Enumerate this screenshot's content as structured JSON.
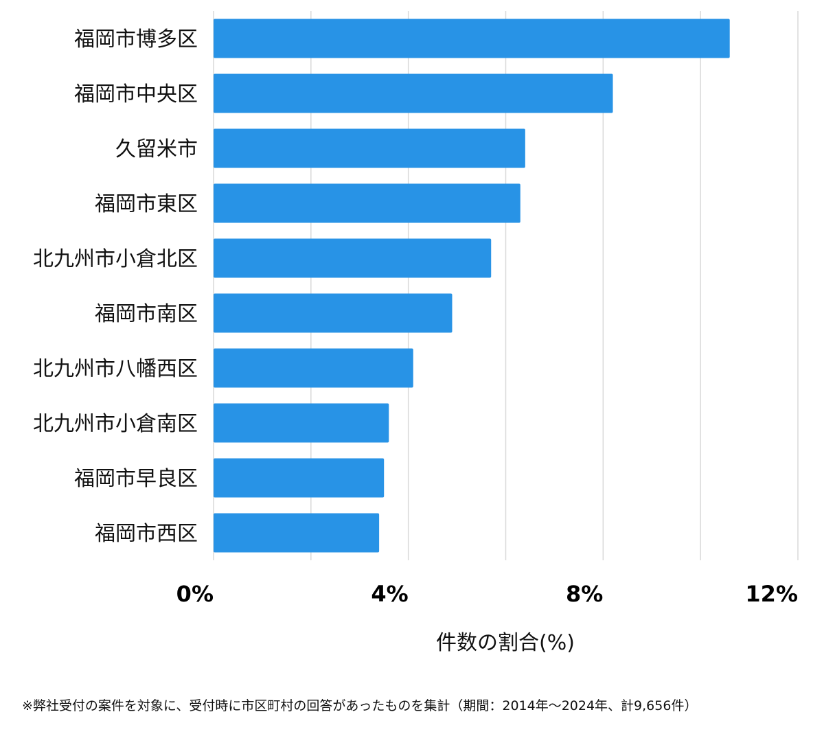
{
  "chart_data": {
    "type": "bar",
    "orientation": "horizontal",
    "categories": [
      "福岡市博多区",
      "福岡市中央区",
      "久留米市",
      "福岡市東区",
      "北九州市小倉北区",
      "福岡市南区",
      "北九州市八幡西区",
      "北九州市小倉南区",
      "福岡市早良区",
      "福岡市西区"
    ],
    "values": [
      10.6,
      8.2,
      6.4,
      6.3,
      5.7,
      4.9,
      4.1,
      3.6,
      3.5,
      3.4
    ],
    "xlabel": "件数の割合(%)",
    "ylabel": "",
    "xlim": [
      0,
      12
    ],
    "x_ticks": [
      0,
      4,
      8,
      12
    ],
    "x_tick_labels": [
      "0%",
      "4%",
      "8%",
      "12%"
    ],
    "grid": true,
    "bar_color": "#2893E6",
    "grid_color": "#D9D9D9"
  },
  "footnote": "※弊社受付の案件を対象に、受付時に市区町村の回答があったものを集計（期間：2014年～2024年、計9,656件）"
}
